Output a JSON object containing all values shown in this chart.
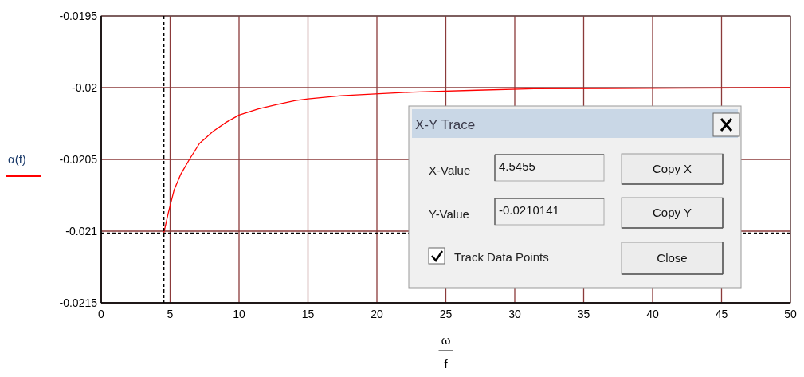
{
  "chart_data": {
    "type": "line",
    "xlabel": "ω/f",
    "series": [
      {
        "name": "α(f)",
        "color": "#ff0000",
        "x": [
          4.5455,
          4.9,
          5.29,
          5.78,
          6.4,
          7.13,
          8.1,
          9.07,
          10,
          11.4,
          12.75,
          14.1,
          15,
          17.4,
          19.6,
          22.6,
          27.25,
          31.4,
          42,
          50
        ],
        "values": [
          -0.02101,
          -0.020861,
          -0.020713,
          -0.020602,
          -0.0205,
          -0.020389,
          -0.020306,
          -0.020241,
          -0.020191,
          -0.020148,
          -0.020117,
          -0.020089,
          -0.020078,
          -0.020056,
          -0.020045,
          -0.020031,
          -0.020018,
          -0.020008,
          -0.020004,
          -0.02
        ]
      }
    ],
    "xlim": [
      0,
      50
    ],
    "xticks": [
      0,
      5,
      10,
      15,
      20,
      25,
      30,
      35,
      40,
      45,
      50
    ],
    "ylim": [
      -0.0215,
      -0.0195
    ],
    "yticks": [
      -0.0215,
      -0.021,
      -0.0205,
      -0.02,
      -0.0195
    ],
    "grid": true,
    "legend": "left",
    "line_style": "solid",
    "marker": "none",
    "ref_lines": [
      {
        "axis": "x",
        "value": 4.5455,
        "color": "#000000",
        "line_style": "dashed"
      },
      {
        "axis": "y",
        "value": -0.0210141,
        "color": "#000000",
        "line_style": "dashed"
      }
    ],
    "annotations": [
      "X-Y Trace",
      "X-Value",
      "4.5455",
      "Y-Value",
      "-0.0210141",
      "Copy X",
      "Copy Y",
      "Track Data Points",
      "Close"
    ]
  }
}
